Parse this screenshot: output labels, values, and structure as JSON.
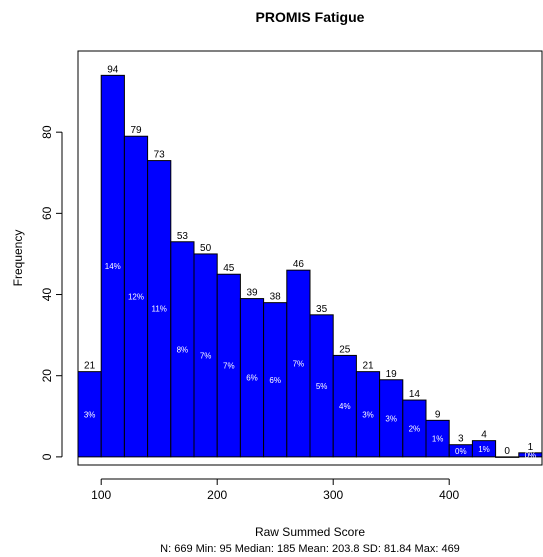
{
  "chart_data": {
    "type": "bar",
    "title": "PROMIS Fatigue",
    "xlabel": "Raw Summed Score",
    "ylabel": "Frequency",
    "summary": "N: 669 Min: 95  Median: 185  Mean: 203.8  SD: 81.84  Max: 469",
    "bin_width": 20,
    "bin_starts": [
      80,
      100,
      120,
      140,
      160,
      180,
      200,
      220,
      240,
      260,
      280,
      300,
      320,
      340,
      360,
      380,
      400,
      420,
      440,
      460
    ],
    "values": [
      21,
      94,
      79,
      73,
      53,
      50,
      45,
      39,
      38,
      46,
      35,
      25,
      21,
      19,
      14,
      9,
      3,
      4,
      0,
      1
    ],
    "count_labels": [
      "21",
      "94",
      "79",
      "73",
      "53",
      "50",
      "45",
      "39",
      "38",
      "46",
      "35",
      "25",
      "21",
      "19",
      "14",
      "9",
      "3",
      "4",
      "0",
      "1"
    ],
    "percent_labels": [
      "3%",
      "14%",
      "12%",
      "11%",
      "8%",
      "7%",
      "7%",
      "6%",
      "6%",
      "7%",
      "5%",
      "4%",
      "3%",
      "3%",
      "2%",
      "1%",
      "0%",
      "1%",
      "",
      "0%"
    ],
    "xlim": [
      80,
      480
    ],
    "ylim": [
      -2,
      100
    ],
    "x_ticks": [
      100,
      200,
      300,
      400
    ],
    "x_tick_labels": [
      "100",
      "200",
      "300",
      "400"
    ],
    "y_ticks": [
      0,
      20,
      40,
      60,
      80
    ],
    "y_tick_labels": [
      "0",
      "20",
      "40",
      "60",
      "80"
    ],
    "bar_color": "#0000ff",
    "bar_edge_color": "#000000",
    "grid": false
  }
}
